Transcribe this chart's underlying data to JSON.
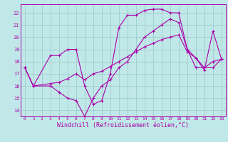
{
  "bg_color": "#c0e8e8",
  "grid_color": "#a0cccc",
  "line_color": "#aa00aa",
  "xlabel": "Windchill (Refroidissement éolien,°C)",
  "ylim": [
    13.5,
    22.7
  ],
  "xlim": [
    -0.5,
    23.5
  ],
  "yticks": [
    14,
    15,
    16,
    17,
    18,
    19,
    20,
    21,
    22
  ],
  "xticks": [
    0,
    1,
    2,
    3,
    4,
    5,
    6,
    7,
    8,
    9,
    10,
    11,
    12,
    13,
    14,
    15,
    16,
    17,
    18,
    19,
    20,
    21,
    22,
    23
  ],
  "line1_x": [
    0,
    1,
    3,
    4,
    5,
    6,
    7,
    8,
    9,
    10,
    11,
    12,
    13,
    14,
    15,
    16,
    17,
    18,
    19,
    20,
    21,
    22,
    23
  ],
  "line1_y": [
    17.5,
    16.0,
    18.5,
    18.5,
    19.0,
    19.0,
    16.0,
    14.5,
    14.8,
    17.0,
    20.8,
    21.8,
    21.8,
    22.2,
    22.3,
    22.3,
    22.0,
    22.0,
    19.0,
    18.3,
    17.3,
    20.5,
    18.2
  ],
  "line2_x": [
    0,
    1,
    3,
    4,
    5,
    6,
    7,
    8,
    9,
    10,
    11,
    12,
    13,
    14,
    15,
    16,
    17,
    18,
    19,
    20,
    21,
    22,
    23
  ],
  "line2_y": [
    17.5,
    16.0,
    16.0,
    15.5,
    15.0,
    14.8,
    13.5,
    15.0,
    16.0,
    16.5,
    17.5,
    18.0,
    19.0,
    20.0,
    20.5,
    21.0,
    21.5,
    21.2,
    19.0,
    17.5,
    17.5,
    17.5,
    18.2
  ],
  "line3_x": [
    0,
    1,
    3,
    4,
    5,
    6,
    7,
    8,
    9,
    10,
    11,
    12,
    13,
    14,
    15,
    16,
    17,
    18,
    19,
    20,
    21,
    22,
    23
  ],
  "line3_y": [
    17.5,
    16.0,
    16.2,
    16.3,
    16.6,
    17.0,
    16.5,
    17.0,
    17.2,
    17.6,
    18.0,
    18.4,
    18.8,
    19.2,
    19.5,
    19.8,
    20.0,
    20.2,
    18.8,
    18.3,
    17.5,
    18.0,
    18.2
  ]
}
